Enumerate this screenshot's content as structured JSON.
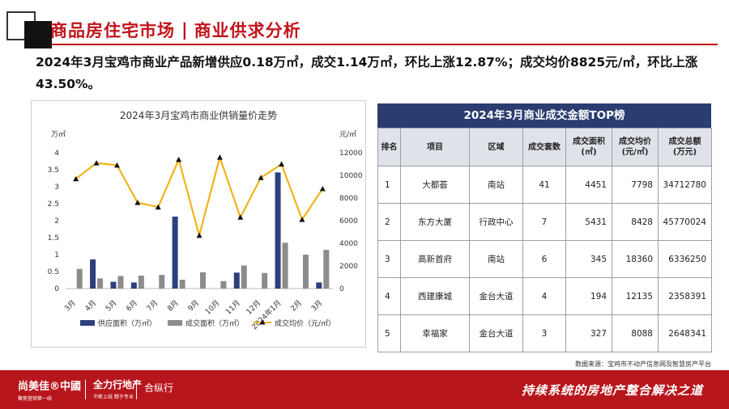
{
  "header": {
    "title_left": "商品房住宅市场",
    "separator": "|",
    "title_right": "商业供求分析"
  },
  "summary": "2024年3月宝鸡市商业产品新增供应0.18万㎡，成交1.14万㎡，环比上涨12.87%；成交均价8825元/㎡，环比上涨43.50%。",
  "chart_data": {
    "type": "bar",
    "title": "2024年3月宝鸡市商业供销量价走势",
    "ylabel": "万㎡",
    "ylabel_right": "元/㎡",
    "ylim": [
      0,
      4
    ],
    "ylim_right": [
      0,
      12000
    ],
    "yticks": [
      "0",
      "0.5",
      "1",
      "1.5",
      "2",
      "2.5",
      "3",
      "3.5",
      "4"
    ],
    "yticks_right": [
      "0",
      "2000",
      "4000",
      "6000",
      "8000",
      "10000",
      "12000"
    ],
    "categories": [
      "3月",
      "4月",
      "5月",
      "6月",
      "7月",
      "8月",
      "9月",
      "10月",
      "11月",
      "12月",
      "2024年1月",
      "2月",
      "3月"
    ],
    "series": [
      {
        "name": "供应面积（万㎡）",
        "type": "bar",
        "color": "#2e3f7d",
        "values": [
          0,
          0.86,
          0.2,
          0.18,
          0,
          2.12,
          0,
          0,
          0.47,
          0,
          3.42,
          0,
          0.18
        ]
      },
      {
        "name": "成交面积（万㎡）",
        "type": "bar",
        "color": "#8c8c8c",
        "values": [
          0.58,
          0.3,
          0.37,
          0.38,
          0.4,
          0.26,
          0.48,
          0.22,
          0.68,
          0.46,
          1.35,
          1.0,
          1.14
        ]
      },
      {
        "name": "成交均价（元/㎡）",
        "type": "line",
        "axis": "right",
        "color": "#f2b318",
        "values": [
          9700,
          11100,
          10900,
          7600,
          7200,
          11400,
          4700,
          11600,
          6300,
          9800,
          11000,
          6100,
          8825
        ]
      }
    ],
    "legend_position": "bottom",
    "grid": false
  },
  "table": {
    "title": "2024年3月商业成交金额TOP榜",
    "headers": [
      "排名",
      "项目",
      "区域",
      "成交套数",
      "成交面积\n(㎡)",
      "成交均价\n(元/㎡)",
      "成交总额\n(万元)"
    ],
    "rows": [
      [
        "1",
        "大都荟",
        "南站",
        "41",
        "4451",
        "7798",
        "34712780"
      ],
      [
        "2",
        "东方大厦",
        "行政中心",
        "7",
        "5431",
        "8428",
        "45770024"
      ],
      [
        "3",
        "高新首府",
        "南站",
        "6",
        "345",
        "18360",
        "6336250"
      ],
      [
        "4",
        "西建康城",
        "金台大道",
        "4",
        "194",
        "12135",
        "2358391"
      ],
      [
        "5",
        "幸福家",
        "金台大道",
        "3",
        "327",
        "8088",
        "2648341"
      ]
    ]
  },
  "source": "数据来源：宝鸡市不动产信息网及智慧房产平台",
  "footer": {
    "brand1": "尚美佳®中國",
    "brand1_sub": "聚焦营销第一线",
    "brand2": "全力行地产",
    "brand2_sub": "不断上线 精于专业",
    "brand3": "合纵行",
    "slogan": "持续系统的房地产整合解决之道"
  }
}
